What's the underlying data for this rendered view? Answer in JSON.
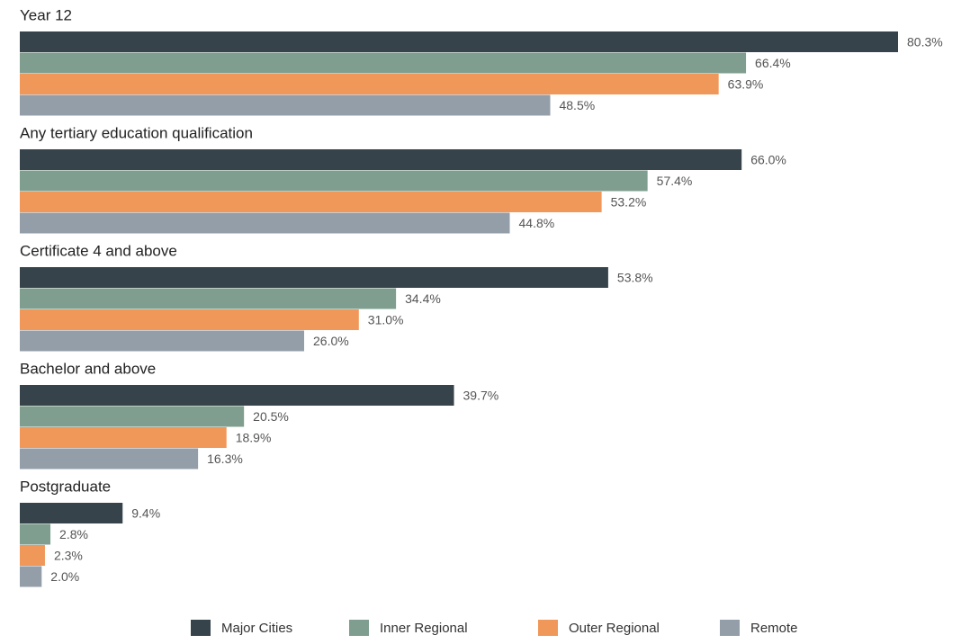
{
  "chart_data": {
    "type": "bar",
    "orientation": "horizontal",
    "categories": [
      "Year 12",
      "Any tertiary education qualification",
      "Certificate 4 and above",
      "Bachelor and above",
      "Postgraduate"
    ],
    "series": [
      {
        "name": "Major Cities",
        "color": "#37434b",
        "values": [
          80.3,
          66.0,
          53.8,
          39.7,
          9.4
        ],
        "value_labels": [
          "80.3%",
          "66.0%",
          "53.8%",
          "39.7%",
          "9.4%"
        ]
      },
      {
        "name": "Inner Regional",
        "color": "#7f9e8f",
        "values": [
          66.4,
          57.4,
          34.4,
          20.5,
          2.8
        ],
        "value_labels": [
          "66.4%",
          "57.4%",
          "34.4%",
          "20.5%",
          "2.8%"
        ]
      },
      {
        "name": "Outer Regional",
        "color": "#f0975a",
        "values": [
          63.9,
          53.2,
          31.0,
          18.9,
          2.3
        ],
        "value_labels": [
          "63.9%",
          "53.2%",
          "31.0%",
          "18.9%",
          "2.3%"
        ]
      },
      {
        "name": "Remote",
        "color": "#949ea8",
        "values": [
          48.5,
          44.8,
          26.0,
          16.3,
          2.0
        ],
        "value_labels": [
          "48.5%",
          "44.8%",
          "26.0%",
          "16.3%",
          "2.0%"
        ]
      }
    ],
    "legend": "bottom"
  }
}
